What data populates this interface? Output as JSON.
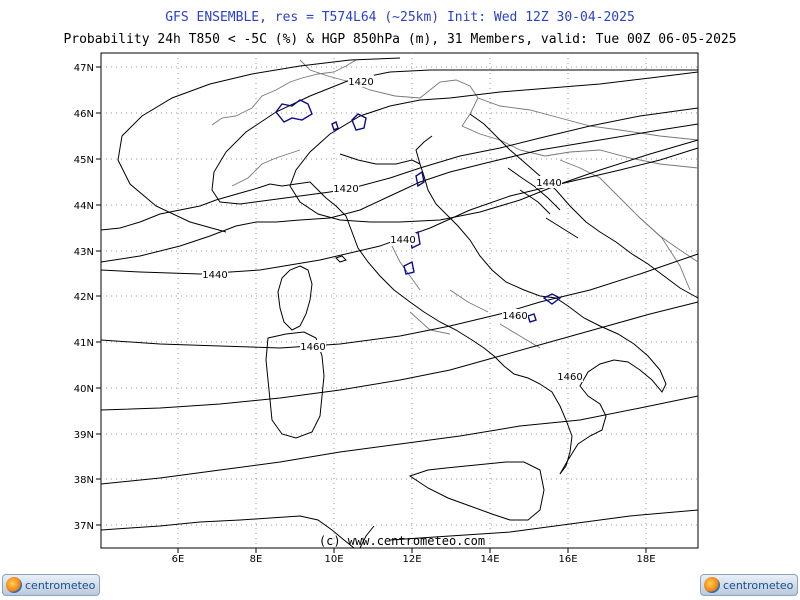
{
  "header": {
    "title": "GFS ENSEMBLE, res = T574L64 (~25km)   Init: Wed 12Z 30-04-2025",
    "subtitle": "Probability 24h T850 < -5C (%) & HGP 850hPa (m), 31 Members, valid: Tue 00Z 06-05-2025"
  },
  "map": {
    "lat_labels": [
      "47N",
      "46N",
      "45N",
      "44N",
      "43N",
      "42N",
      "41N",
      "40N",
      "39N",
      "38N",
      "37N"
    ],
    "lon_labels": [
      "6E",
      "8E",
      "10E",
      "12E",
      "14E",
      "16E",
      "18E"
    ],
    "contour_labels": [
      "1420",
      "1420",
      "1440",
      "1440",
      "1440",
      "1460",
      "1460",
      "1460"
    ],
    "copyright": "(c) www.centrometeo.com"
  },
  "logos": {
    "left_text": "centrometeo",
    "right_text": "centrometeo"
  },
  "colors": {
    "title": "#2a3fd0",
    "probability_contour": "#0a0a8a",
    "coastline": "#000000",
    "border": "#777777"
  }
}
